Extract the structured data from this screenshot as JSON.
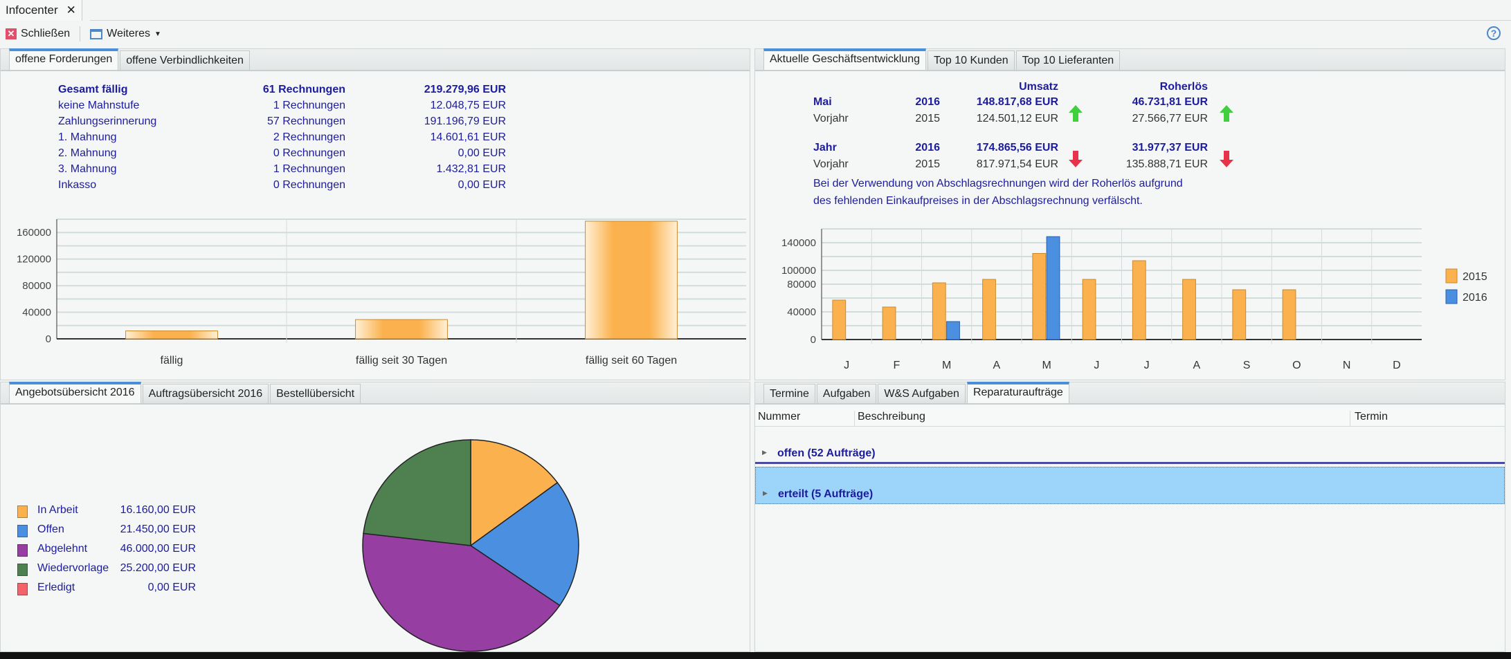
{
  "window": {
    "tab_title": "Infocenter",
    "close_glyph": "✕"
  },
  "toolbar": {
    "close_label": "Schließen",
    "more_label": "Weiteres",
    "help_glyph": "?"
  },
  "receivables": {
    "tabs": [
      "offene Forderungen",
      "offene Verbindlichkeiten"
    ],
    "rows": [
      {
        "label": "Gesamt fällig",
        "count": "61 Rechnungen",
        "amount": "219.279,96 EUR",
        "bold": true
      },
      {
        "label": "keine Mahnstufe",
        "count": "1 Rechnungen",
        "amount": "12.048,75 EUR"
      },
      {
        "label": "Zahlungserinnerung",
        "count": "57 Rechnungen",
        "amount": "191.196,79 EUR"
      },
      {
        "label": "1. Mahnung",
        "count": "2 Rechnungen",
        "amount": "14.601,61 EUR"
      },
      {
        "label": "2. Mahnung",
        "count": "0 Rechnungen",
        "amount": "0,00 EUR"
      },
      {
        "label": "3. Mahnung",
        "count": "1 Rechnungen",
        "amount": "1.432,81 EUR"
      },
      {
        "label": "Inkasso",
        "count": "0 Rechnungen",
        "amount": "0,00 EUR"
      }
    ]
  },
  "business": {
    "tabs": [
      "Aktuelle Geschäftsentwicklung",
      "Top 10 Kunden",
      "Top 10 Lieferanten"
    ],
    "col_umsatz": "Umsatz",
    "col_roherloes": "Roherlös",
    "blocks": [
      {
        "label": "Mai",
        "year": "2016",
        "umsatz": "148.817,68 EUR",
        "roherloes": "46.731,81 EUR",
        "prev_label": "Vorjahr",
        "prev_year": "2015",
        "prev_umsatz": "124.501,12 EUR",
        "prev_roherloes": "27.566,77 EUR",
        "umsatz_trend": "up",
        "roherloes_trend": "up"
      },
      {
        "label": "Jahr",
        "year": "2016",
        "umsatz": "174.865,56 EUR",
        "roherloes": "31.977,37 EUR",
        "prev_label": "Vorjahr",
        "prev_year": "2015",
        "prev_umsatz": "817.971,54 EUR",
        "prev_roherloes": "135.888,71 EUR",
        "umsatz_trend": "down",
        "roherloes_trend": "down"
      }
    ],
    "note_line1": "Bei der Verwendung von Abschlagsrechnungen wird der Roherlös aufgrund",
    "note_line2": "des fehlenden Einkaufpreises in der Abschlagsrechnung verfälscht.",
    "colors": {
      "up": "#3fcf3f",
      "down": "#e8324a"
    }
  },
  "offers": {
    "tabs": [
      "Angebotsübersicht 2016",
      "Auftragsübersicht 2016",
      "Bestellübersicht"
    ]
  },
  "repairs": {
    "tabs": [
      "Termine",
      "Aufgaben",
      "W&S Aufgaben",
      "Reparaturaufträge"
    ],
    "columns": [
      "Nummer",
      "Beschreibung",
      "Termin"
    ],
    "groups": [
      "offen (52 Aufträge)",
      "erteilt (5 Aufträge)"
    ],
    "selected_group": 1
  },
  "chart_data": [
    {
      "type": "bar",
      "categories": [
        "fällig",
        "fällig seit 30 Tagen",
        "fällig seit 60 Tagen"
      ],
      "values": [
        12000,
        29000,
        177000
      ],
      "ylim": [
        0,
        180000
      ],
      "yticks": [
        0,
        40000,
        80000,
        120000,
        160000
      ],
      "grid": true,
      "color": "#fbb24e"
    },
    {
      "type": "bar",
      "categories": [
        "J",
        "F",
        "M",
        "A",
        "M",
        "J",
        "J",
        "A",
        "S",
        "O",
        "N",
        "D"
      ],
      "series": [
        {
          "name": "2015",
          "values": [
            57000,
            47000,
            82000,
            87000,
            124500,
            87000,
            114000,
            87000,
            72000,
            72000,
            0,
            0
          ],
          "color": "#fbb24e"
        },
        {
          "name": "2016",
          "values": [
            0,
            0,
            26000,
            0,
            148800,
            0,
            0,
            0,
            0,
            0,
            0,
            0
          ],
          "color": "#4a8fe0"
        }
      ],
      "ylim": [
        0,
        160000
      ],
      "yticks": [
        0,
        40000,
        80000,
        100000,
        140000
      ],
      "grid": true,
      "legend": "right"
    },
    {
      "type": "pie",
      "labels": [
        "In Arbeit",
        "Offen",
        "Abgelehnt",
        "Wiedervorlage",
        "Erledigt"
      ],
      "values": [
        16160,
        21450,
        46000,
        25200,
        0
      ],
      "value_labels": [
        "16.160,00 EUR",
        "21.450,00 EUR",
        "46.000,00 EUR",
        "25.200,00 EUR",
        "0,00 EUR"
      ],
      "colors": [
        "#fbb24e",
        "#4a8fe0",
        "#963ea2",
        "#4f8150",
        "#f2636b"
      ],
      "legend": "left"
    }
  ]
}
